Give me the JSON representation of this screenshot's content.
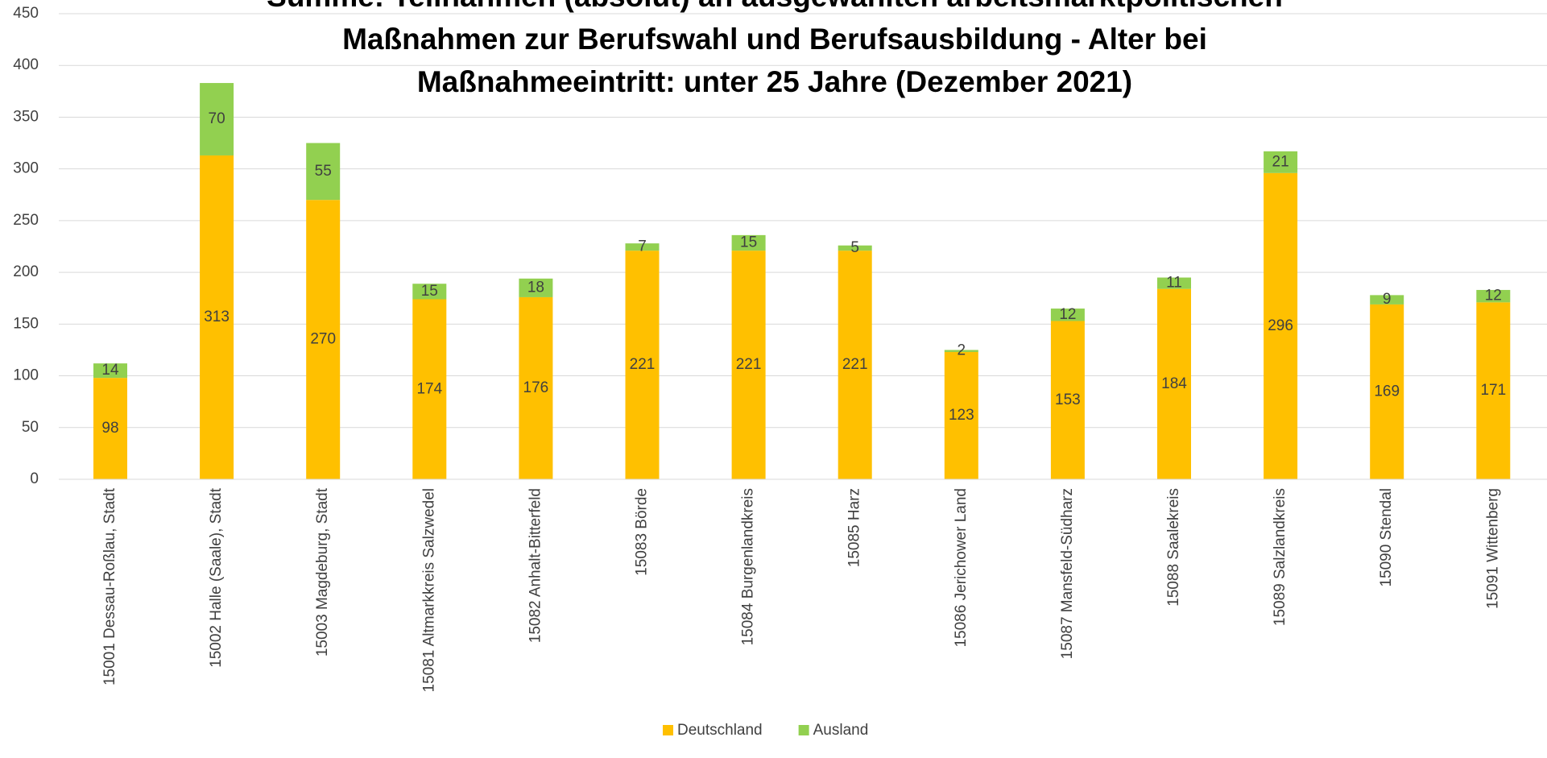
{
  "chart_data": {
    "type": "stacked_bar",
    "title": [
      "Summe: Teilnahmen (absolut) an ausgewählten arbeitsmarktpolitischen",
      "Maßnahmen zur Berufswahl und Berufsausbildung - Alter bei",
      "Maßnahmeeintritt: unter 25 Jahre  (Dezember 2021)"
    ],
    "categories": [
      "15001  Dessau-Roßlau, Stadt",
      "15002  Halle (Saale), Stadt",
      "15003  Magdeburg, Stadt",
      "15081  Altmarkkreis Salzwedel",
      "15082  Anhalt-Bitterfeld",
      "15083  Börde",
      "15084  Burgenlandkreis",
      "15085  Harz",
      "15086  Jerichower Land",
      "15087  Mansfeld-Südharz",
      "15088  Saalekreis",
      "15089  Salzlandkreis",
      "15090  Stendal",
      "15091  Wittenberg"
    ],
    "series": [
      {
        "name": "Deutschland",
        "color": "#ffc000",
        "values": [
          98,
          313,
          270,
          174,
          176,
          221,
          221,
          221,
          123,
          153,
          184,
          296,
          169,
          171
        ]
      },
      {
        "name": "Ausland",
        "color": "#92d050",
        "values": [
          14,
          70,
          55,
          15,
          18,
          7,
          15,
          5,
          2,
          12,
          11,
          21,
          9,
          12
        ]
      }
    ],
    "ylim": [
      0,
      450
    ],
    "yticks": [
      0,
      50,
      100,
      150,
      200,
      250,
      300,
      350,
      400,
      450
    ],
    "grid": true,
    "legend": "bottom"
  }
}
